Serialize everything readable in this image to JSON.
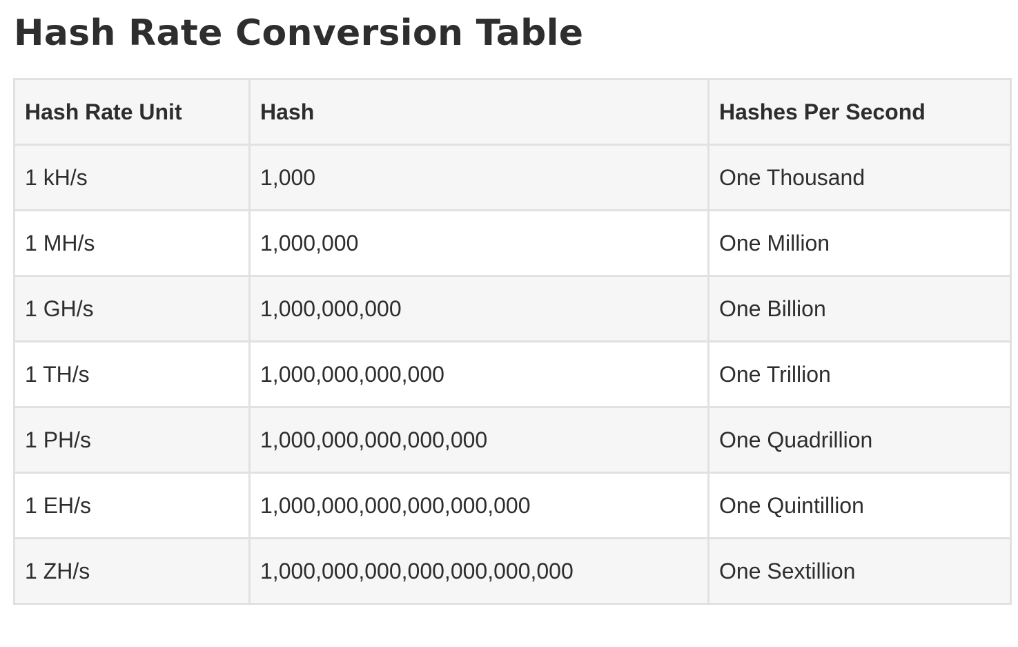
{
  "title": "Hash Rate Conversion Table",
  "table": {
    "headers": [
      "Hash Rate Unit",
      "Hash",
      "Hashes Per Second"
    ],
    "rows": [
      [
        "1 kH/s",
        "1,000",
        "One Thousand"
      ],
      [
        "1 MH/s",
        "1,000,000",
        "One Million"
      ],
      [
        "1 GH/s",
        "1,000,000,000",
        "One Billion"
      ],
      [
        "1 TH/s",
        "1,000,000,000,000",
        "One Trillion"
      ],
      [
        "1 PH/s",
        "1,000,000,000,000,000",
        "One Quadrillion"
      ],
      [
        "1 EH/s",
        "1,000,000,000,000,000,000",
        "One Quintillion"
      ],
      [
        "1 ZH/s",
        "1,000,000,000,000,000,000,000",
        "One Sextillion"
      ]
    ]
  },
  "colors": {
    "text": "#2d2d2d",
    "border": "#e1e1e1",
    "stripe": "#f6f6f6",
    "background": "#ffffff"
  }
}
